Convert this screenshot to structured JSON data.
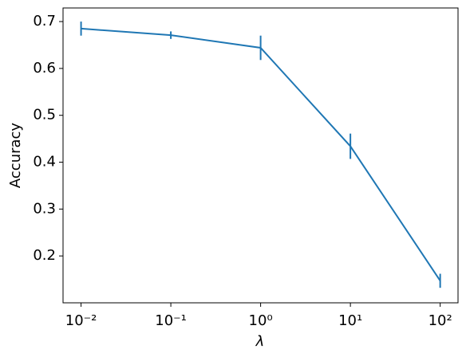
{
  "chart_data": {
    "type": "line",
    "xlabel": "λ",
    "ylabel": "Accuracy",
    "xscale": "log",
    "x": [
      0.01,
      0.1,
      1,
      10,
      100
    ],
    "series": [
      {
        "color": "#1f77b4",
        "values": [
          0.685,
          0.671,
          0.644,
          0.434,
          0.147
        ],
        "errors": [
          0.015,
          0.008,
          0.026,
          0.027,
          0.015
        ]
      }
    ],
    "xlim": [
      0.0063,
      158
    ],
    "ylim": [
      0.1,
      0.729
    ],
    "xticks": [
      {
        "value": 0.01,
        "label": "10⁻²"
      },
      {
        "value": 0.1,
        "label": "10⁻¹"
      },
      {
        "value": 1,
        "label": "10⁰"
      },
      {
        "value": 10,
        "label": "10¹"
      },
      {
        "value": 100,
        "label": "10²"
      }
    ],
    "yticks": [
      0.2,
      0.3,
      0.4,
      0.5,
      0.6,
      0.7
    ]
  }
}
